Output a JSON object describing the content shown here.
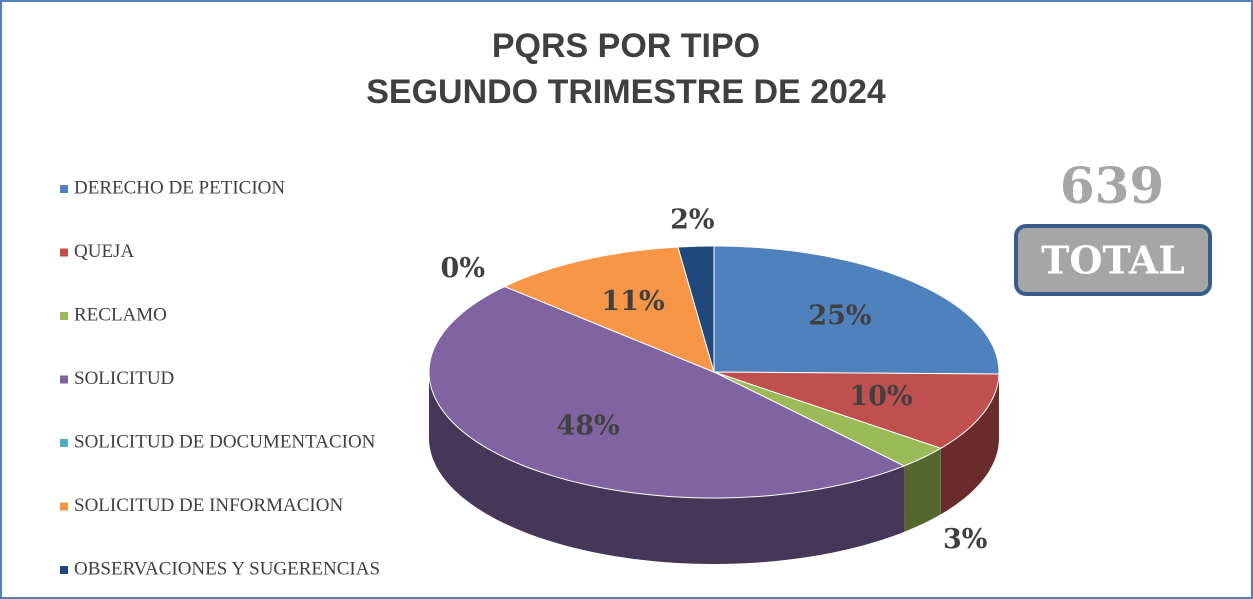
{
  "chart_data": {
    "type": "pie",
    "title": "PQRS POR TIPO",
    "subtitle": "SEGUNDO TRIMESTRE DE 2024",
    "categories": [
      "DERECHO DE PETICION",
      "QUEJA",
      "RECLAMO",
      "SOLICITUD",
      "SOLICITUD DE DOCUMENTACION",
      "SOLICITUD DE INFORMACION",
      "OBSERVACIONES Y SUGERENCIAS"
    ],
    "values": [
      25,
      10,
      3,
      48,
      0,
      11,
      2
    ],
    "value_labels": [
      "25%",
      "10%",
      "3%",
      "48%",
      "0%",
      "11%",
      "2%"
    ],
    "colors": [
      "#4f81bd",
      "#c0504d",
      "#9bbb59",
      "#8064a2",
      "#4bacc6",
      "#f79646",
      "#1f497d"
    ],
    "legend": "left",
    "total": "639",
    "total_label": "TOTAL"
  }
}
